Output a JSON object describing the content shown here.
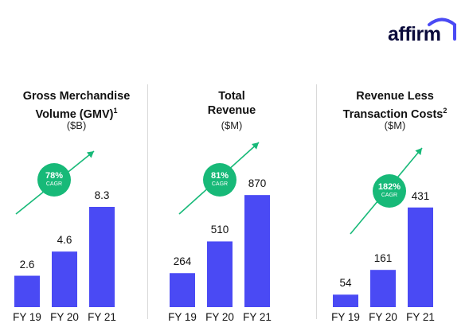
{
  "logo": {
    "text": "affirm",
    "arc_color": "#4a4af4",
    "text_color": "#0b0b3b"
  },
  "colors": {
    "bar": "#4a4af4",
    "badge": "#17b978",
    "arrow": "#17b978"
  },
  "chart_data": [
    {
      "type": "bar",
      "title": "Gross Merchandise Volume (GMV)",
      "title_lines": [
        "Gross Merchandise",
        "Volume (GMV)"
      ],
      "footnote": "1",
      "unit": "($B)",
      "categories": [
        "FY 19",
        "FY 20",
        "FY 21"
      ],
      "values": [
        2.6,
        4.6,
        8.3
      ],
      "value_labels": [
        "2.6",
        "4.6",
        "8.3"
      ],
      "ylim": [
        0,
        11.2
      ],
      "cagr": {
        "value": "78%",
        "label": "CAGR"
      }
    },
    {
      "type": "bar",
      "title": "Total Revenue",
      "title_lines": [
        "Total",
        "Revenue"
      ],
      "footnote": "",
      "unit": "($M)",
      "categories": [
        "FY 19",
        "FY 20",
        "FY 21"
      ],
      "values": [
        264,
        510,
        870
      ],
      "value_labels": [
        "264",
        "510",
        "870"
      ],
      "ylim": [
        0,
        1050
      ],
      "cagr": {
        "value": "81%",
        "label": "CAGR"
      }
    },
    {
      "type": "bar",
      "title": "Revenue Less Transaction Costs",
      "title_lines": [
        "Revenue Less",
        "Transaction Costs"
      ],
      "footnote": "2",
      "unit": "($M)",
      "categories": [
        "FY 19",
        "FY 20",
        "FY 21"
      ],
      "values": [
        54,
        161,
        431
      ],
      "value_labels": [
        "54",
        "161",
        "431"
      ],
      "ylim": [
        0,
        585
      ],
      "cagr": {
        "value": "182%",
        "label": "CAGR"
      }
    }
  ]
}
